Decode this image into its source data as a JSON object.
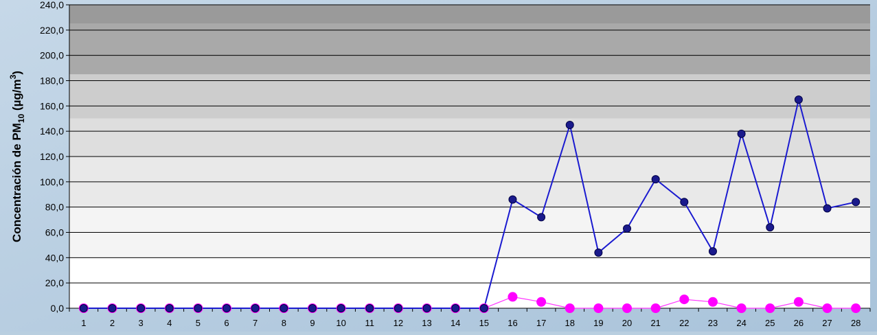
{
  "chart_data": {
    "type": "line",
    "title": "",
    "ylabel": "Concentración de PM₁₀ (µg/m³)",
    "ylabel_parts": {
      "prefix": "Concentración de PM",
      "subscript": "10",
      "middle": " (µg/m",
      "superscript": "3",
      "suffix": ")"
    },
    "xlabel": "",
    "ylim": [
      0,
      240
    ],
    "yticks": [
      "0,0",
      "20,0",
      "40,0",
      "60,0",
      "80,0",
      "100,0",
      "120,0",
      "140,0",
      "160,0",
      "180,0",
      "200,0",
      "220,0",
      "240,0"
    ],
    "categories": [
      "1",
      "2",
      "3",
      "4",
      "5",
      "6",
      "7",
      "8",
      "9",
      "10",
      "11",
      "12",
      "13",
      "14",
      "15",
      "16",
      "17",
      "18",
      "19",
      "20",
      "21",
      "22",
      "23",
      "24",
      "25",
      "26",
      "27",
      "28"
    ],
    "grid": true,
    "legend": "none",
    "series": [
      {
        "color": "#1a1ad0",
        "marker_color": "#1a1a8c",
        "values": [
          0,
          0,
          0,
          0,
          0,
          0,
          0,
          0,
          0,
          0,
          0,
          0,
          0,
          0,
          0,
          86,
          72,
          145,
          44,
          63,
          102,
          84,
          45,
          138,
          64,
          165,
          79,
          84
        ]
      },
      {
        "color": "#ff33ff",
        "marker_color": "#ff00ff",
        "values": [
          0,
          0,
          0,
          0,
          0,
          0,
          0,
          0,
          0,
          0,
          0,
          0,
          0,
          0,
          0,
          9,
          5,
          0,
          0,
          0,
          0,
          7,
          5,
          0,
          0,
          5,
          0,
          0
        ]
      }
    ]
  }
}
